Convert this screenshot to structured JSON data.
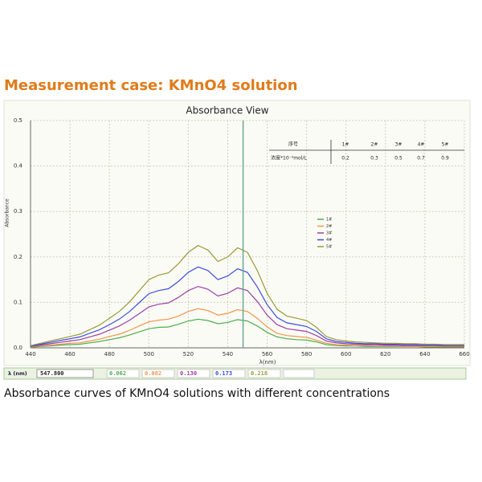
{
  "header": {
    "title": "Measurement case: KMnO4 solution"
  },
  "caption": "Absorbance curves of KMnO4 solutions with different concentrations",
  "chart_data": {
    "type": "line",
    "title": "Absorbance View",
    "x_label": "λ(nm)",
    "y_label": "Absorbance",
    "xlim": [
      440,
      660
    ],
    "ylim": [
      0,
      0.5
    ],
    "xticks": [
      440,
      460,
      480,
      500,
      520,
      540,
      560,
      580,
      600,
      620,
      640,
      660
    ],
    "yticks": [
      {
        "value": 0,
        "label": "0.0"
      },
      0.1,
      0.2,
      0.3,
      0.4,
      0.5
    ],
    "grid": true,
    "x": [
      440,
      445,
      450,
      455,
      460,
      465,
      470,
      475,
      480,
      485,
      490,
      495,
      500,
      505,
      510,
      515,
      520,
      525,
      530,
      535,
      540,
      545,
      550,
      555,
      560,
      565,
      570,
      575,
      580,
      585,
      590,
      595,
      600,
      605,
      610,
      615,
      620,
      625,
      630,
      635,
      640,
      645,
      650,
      655,
      660
    ],
    "series": [
      {
        "name": "1#",
        "color": "#4caf50",
        "values": [
          0.001,
          0.003,
          0.004,
          0.006,
          0.007,
          0.008,
          0.011,
          0.014,
          0.018,
          0.022,
          0.028,
          0.035,
          0.042,
          0.045,
          0.046,
          0.052,
          0.059,
          0.063,
          0.06,
          0.053,
          0.056,
          0.062,
          0.059,
          0.048,
          0.034,
          0.024,
          0.02,
          0.018,
          0.017,
          0.013,
          0.007,
          0.005,
          0.004,
          0.004,
          0.003,
          0.003,
          0.003,
          0.003,
          0.003,
          0.003,
          0.002,
          0.002,
          0.002,
          0.002,
          0.002
        ]
      },
      {
        "name": "2#",
        "color": "#f5944a",
        "values": [
          0.002,
          0.004,
          0.006,
          0.008,
          0.01,
          0.011,
          0.015,
          0.019,
          0.025,
          0.03,
          0.038,
          0.048,
          0.057,
          0.061,
          0.063,
          0.07,
          0.08,
          0.086,
          0.082,
          0.072,
          0.076,
          0.084,
          0.08,
          0.065,
          0.046,
          0.032,
          0.027,
          0.025,
          0.023,
          0.017,
          0.01,
          0.007,
          0.006,
          0.005,
          0.005,
          0.004,
          0.004,
          0.004,
          0.003,
          0.003,
          0.003,
          0.003,
          0.003,
          0.003,
          0.003
        ]
      },
      {
        "name": "3#",
        "color": "#9b3fa8",
        "values": [
          0.003,
          0.006,
          0.009,
          0.012,
          0.015,
          0.018,
          0.024,
          0.03,
          0.039,
          0.048,
          0.06,
          0.075,
          0.09,
          0.096,
          0.099,
          0.111,
          0.126,
          0.135,
          0.129,
          0.114,
          0.12,
          0.132,
          0.126,
          0.102,
          0.072,
          0.051,
          0.042,
          0.039,
          0.036,
          0.027,
          0.015,
          0.011,
          0.009,
          0.008,
          0.007,
          0.007,
          0.006,
          0.006,
          0.005,
          0.005,
          0.005,
          0.005,
          0.004,
          0.004,
          0.004
        ]
      },
      {
        "name": "4#",
        "color": "#3a4ee0",
        "values": [
          0.004,
          0.008,
          0.012,
          0.016,
          0.02,
          0.024,
          0.032,
          0.04,
          0.051,
          0.063,
          0.079,
          0.099,
          0.119,
          0.126,
          0.13,
          0.146,
          0.166,
          0.178,
          0.17,
          0.15,
          0.158,
          0.174,
          0.166,
          0.134,
          0.095,
          0.067,
          0.055,
          0.051,
          0.047,
          0.036,
          0.02,
          0.014,
          0.012,
          0.01,
          0.009,
          0.009,
          0.008,
          0.008,
          0.007,
          0.007,
          0.006,
          0.006,
          0.006,
          0.006,
          0.006
        ]
      },
      {
        "name": "5#",
        "color": "#9a9a3a",
        "values": [
          0.005,
          0.01,
          0.015,
          0.02,
          0.025,
          0.03,
          0.04,
          0.05,
          0.065,
          0.08,
          0.1,
          0.125,
          0.15,
          0.16,
          0.165,
          0.185,
          0.21,
          0.225,
          0.215,
          0.19,
          0.2,
          0.22,
          0.21,
          0.17,
          0.12,
          0.085,
          0.07,
          0.065,
          0.06,
          0.045,
          0.025,
          0.018,
          0.015,
          0.013,
          0.012,
          0.011,
          0.01,
          0.01,
          0.009,
          0.009,
          0.008,
          0.008,
          0.007,
          0.007,
          0.007
        ]
      }
    ],
    "table": {
      "header": [
        "序号",
        "1#",
        "2#",
        "3#",
        "4#",
        "5#"
      ],
      "rows": [
        [
          "浓度*10⁻³mol/L",
          "0.2",
          "0.3",
          "0.5",
          "0.7",
          "0.9"
        ]
      ]
    },
    "cursor": {
      "label": "λ (nm)",
      "value": 547.8,
      "value_label": "547.800",
      "readings": [
        0.062,
        0.082,
        0.13,
        0.173,
        0.218
      ],
      "reading_labels": [
        "0.062",
        "0.082",
        "0.130",
        "0.173",
        "0.218"
      ]
    }
  }
}
